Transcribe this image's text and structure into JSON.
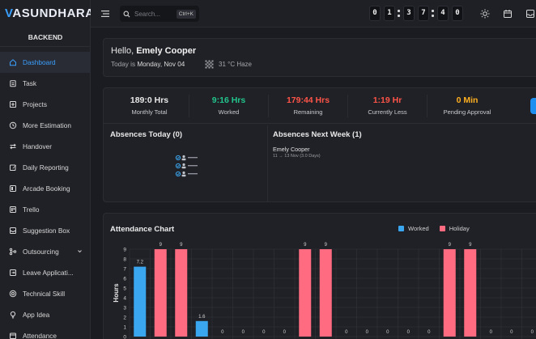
{
  "brand": {
    "logo_prefix": "V",
    "logo_rest": "ASUNDHARA"
  },
  "sidebar": {
    "section_label": "BACKEND",
    "items": [
      {
        "label": "Dashboard",
        "icon": "home-icon",
        "active": true
      },
      {
        "label": "Task",
        "icon": "clipboard-icon"
      },
      {
        "label": "Projects",
        "icon": "plus-square-icon"
      },
      {
        "label": "More Estimation",
        "icon": "clock-icon"
      },
      {
        "label": "Handover",
        "icon": "swap-icon"
      },
      {
        "label": "Daily Reporting",
        "icon": "edit-icon"
      },
      {
        "label": "Arcade Booking",
        "icon": "gamepad-icon"
      },
      {
        "label": "Trello",
        "icon": "trello-icon"
      },
      {
        "label": "Suggestion Box",
        "icon": "inbox-icon"
      },
      {
        "label": "Outsourcing",
        "icon": "share-icon",
        "has_caret": true
      },
      {
        "label": "Leave Applicati...",
        "icon": "logout-icon"
      },
      {
        "label": "Technical Skill",
        "icon": "target-icon"
      },
      {
        "label": "App Idea",
        "icon": "bulb-icon"
      },
      {
        "label": "Attendance",
        "icon": "calendar-icon"
      }
    ]
  },
  "topbar": {
    "search_placeholder": "Search...",
    "search_shortcut": "Ctrl+K",
    "timer_digits": [
      "0",
      "1",
      "3",
      "7",
      "4",
      "0"
    ]
  },
  "hello": {
    "greeting": "Hello, ",
    "name": "Emely Cooper",
    "today_prefix": "Today is ",
    "today_date": "Monday, Nov 04",
    "weather": "31 °C Haze"
  },
  "stats": [
    {
      "value": "189:0 Hrs",
      "label": "Monthly Total",
      "color": "#e8e8e8"
    },
    {
      "value": "9:16 Hrs",
      "label": "Worked",
      "color": "#22c58b"
    },
    {
      "value": "179:44 Hrs",
      "label": "Remaining",
      "color": "#ff5448"
    },
    {
      "value": "1:19 Hr",
      "label": "Currently Less",
      "color": "#ff5448"
    },
    {
      "value": "0 Min",
      "label": "Pending Approval",
      "color": "#ffb020"
    }
  ],
  "absences": {
    "today_title": "Absences Today (0)",
    "next_week_title": "Absences Next Week (1)",
    "next_week": [
      {
        "name": "Emely Cooper",
        "range": "11 → 13 Nov (3.0 Days)"
      }
    ]
  },
  "chart_data": {
    "type": "bar",
    "title": "Attendance Chart",
    "ylabel": "Hours",
    "ylim": [
      0,
      9
    ],
    "yticks": [
      0,
      1,
      2,
      3,
      4,
      5,
      6,
      7,
      8,
      9
    ],
    "grid": true,
    "legend_position": "top-right",
    "series": [
      {
        "name": "Worked",
        "color": "#3aa6ef"
      },
      {
        "name": "Holiday",
        "color": "#ff6b81"
      }
    ],
    "bars": [
      {
        "value": 7.2,
        "label": "7.2",
        "series": "Worked"
      },
      {
        "value": 9,
        "label": "9",
        "series": "Holiday"
      },
      {
        "value": 9,
        "label": "9",
        "series": "Holiday"
      },
      {
        "value": 1.6,
        "label": "1.6",
        "series": "Worked"
      },
      {
        "value": 0,
        "label": "0",
        "series": "Worked"
      },
      {
        "value": 0,
        "label": "0",
        "series": "Worked"
      },
      {
        "value": 0,
        "label": "0",
        "series": "Worked"
      },
      {
        "value": 0,
        "label": "0",
        "series": "Worked"
      },
      {
        "value": 9,
        "label": "9",
        "series": "Holiday"
      },
      {
        "value": 9,
        "label": "9",
        "series": "Holiday"
      },
      {
        "value": 0,
        "label": "0",
        "series": "Worked"
      },
      {
        "value": 0,
        "label": "0",
        "series": "Worked"
      },
      {
        "value": 0,
        "label": "0",
        "series": "Worked"
      },
      {
        "value": 0,
        "label": "0",
        "series": "Worked"
      },
      {
        "value": 0,
        "label": "0",
        "series": "Worked"
      },
      {
        "value": 9,
        "label": "9",
        "series": "Holiday"
      },
      {
        "value": 9,
        "label": "9",
        "series": "Holiday"
      },
      {
        "value": 0,
        "label": "0",
        "series": "Worked"
      },
      {
        "value": 0,
        "label": "0",
        "series": "Worked"
      },
      {
        "value": 0,
        "label": "0",
        "series": "Worked"
      }
    ]
  }
}
